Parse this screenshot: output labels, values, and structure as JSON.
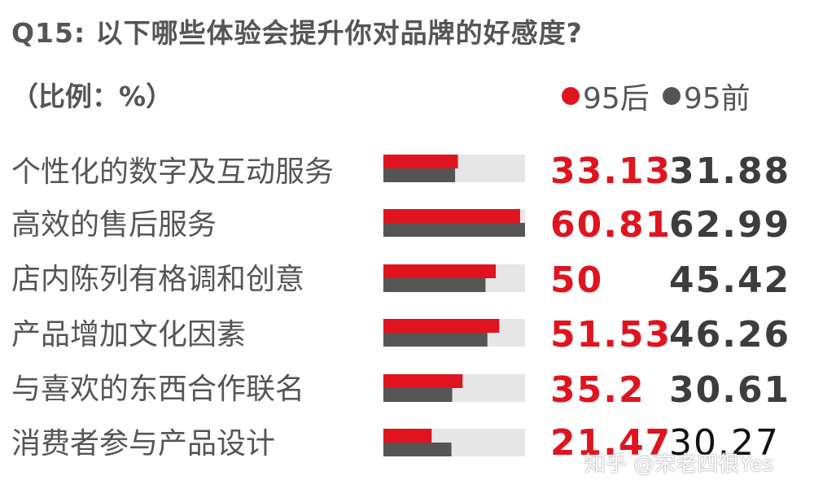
{
  "title": "Q15: 以下哪些体验会提升你对品牌的好感度?",
  "unit": "（比例：%）",
  "watermark": "知乎 @宋老四很Yes",
  "colors": {
    "series_a": "#e0141e",
    "series_b": "#555555",
    "track": "#e6e6e6"
  },
  "chart_data": {
    "type": "bar",
    "orientation": "horizontal",
    "title": "Q15: 以下哪些体验会提升你对品牌的好感度?",
    "ylabel": "（比例：%）",
    "xlim": [
      0,
      63
    ],
    "legend_placement": "top-right",
    "categories": [
      "个性化的数字及互动服务",
      "高效的售后服务",
      "店内陈列有格调和创意",
      "产品增加文化因素",
      "与喜欢的东西合作联名",
      "消费者参与产品设计"
    ],
    "series": [
      {
        "name": "95后",
        "values": [
          33.13,
          60.81,
          50,
          51.53,
          35.2,
          21.47
        ],
        "labels": [
          "33.13",
          "60.81",
          "50",
          "51.53",
          "35.2",
          "21.47"
        ]
      },
      {
        "name": "95前",
        "values": [
          31.88,
          62.99,
          45.42,
          46.26,
          30.61,
          30.27
        ],
        "labels": [
          "31.88",
          "62.99",
          "45.42",
          "46.26",
          "30.61",
          "30.27"
        ]
      }
    ]
  }
}
